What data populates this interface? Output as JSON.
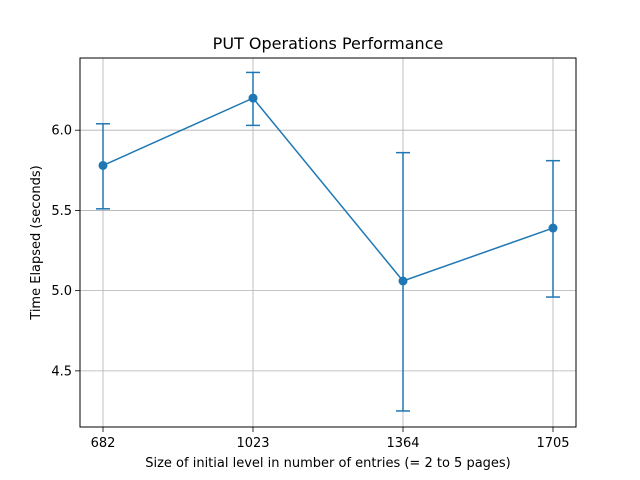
{
  "chart_data": {
    "type": "line",
    "title": "PUT Operations Performance",
    "xlabel": "Size of initial level in number of entries (= 2 to 5 pages)",
    "ylabel": "Time Elapsed (seconds)",
    "categories": [
      "682",
      "1023",
      "1364",
      "1705"
    ],
    "series": [
      {
        "values": [
          5.78,
          6.2,
          5.06,
          5.39
        ],
        "error_low": [
          5.51,
          6.03,
          4.25,
          4.96
        ],
        "error_high": [
          6.04,
          6.36,
          5.86,
          5.81
        ],
        "color": "#1f77b4"
      }
    ],
    "yticks": [
      4.5,
      5.0,
      5.5,
      6.0
    ],
    "ytick_labels": [
      "4.5",
      "5.0",
      "5.5",
      "6.0"
    ],
    "ylim": [
      4.15,
      6.45
    ],
    "grid": true,
    "marker": "circle"
  }
}
